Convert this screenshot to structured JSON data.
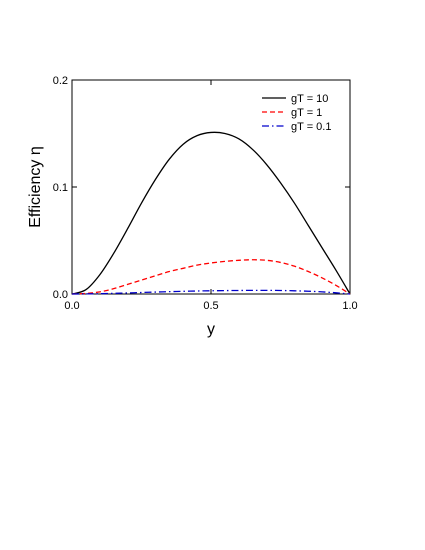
{
  "chart_data": {
    "type": "line",
    "title": "",
    "xlabel": "y",
    "ylabel": "Efficiency η",
    "xlim": [
      0.0,
      1.0
    ],
    "ylim": [
      0.0,
      0.2
    ],
    "x_ticks": [
      0.0,
      1.0
    ],
    "y_ticks": [
      0.0,
      0.1,
      0.2
    ],
    "x_tick_labels": [
      "0.0",
      "1.0"
    ],
    "y_tick_labels": [
      "0.0",
      "0.1",
      "0.2"
    ],
    "grid": false,
    "legend_position": "top-right",
    "x": [
      0.0,
      0.05,
      0.1,
      0.15,
      0.2,
      0.25,
      0.3,
      0.35,
      0.4,
      0.45,
      0.5,
      0.55,
      0.6,
      0.65,
      0.7,
      0.75,
      0.8,
      0.85,
      0.9,
      0.95,
      1.0
    ],
    "series": [
      {
        "name": "gT = 10",
        "color": "#000000",
        "dash": "solid",
        "values": [
          0.0,
          0.004,
          0.018,
          0.038,
          0.061,
          0.085,
          0.107,
          0.126,
          0.14,
          0.148,
          0.151,
          0.15,
          0.145,
          0.135,
          0.121,
          0.104,
          0.085,
          0.064,
          0.043,
          0.022,
          0.0
        ]
      },
      {
        "name": "gT = 1",
        "color": "#ff0000",
        "dash": "dashed",
        "values": [
          0.0,
          0.0005,
          0.002,
          0.005,
          0.009,
          0.013,
          0.017,
          0.021,
          0.024,
          0.027,
          0.029,
          0.0305,
          0.0315,
          0.032,
          0.0315,
          0.0295,
          0.026,
          0.021,
          0.015,
          0.008,
          0.0
        ]
      },
      {
        "name": "gT = 0.1",
        "color": "#0000cc",
        "dash": "dash-dot",
        "values": [
          0.0,
          0.0001,
          0.0003,
          0.0006,
          0.001,
          0.0014,
          0.0018,
          0.0022,
          0.0025,
          0.0028,
          0.003,
          0.0032,
          0.0033,
          0.0034,
          0.0034,
          0.0033,
          0.003,
          0.0026,
          0.002,
          0.0011,
          0.0
        ]
      }
    ]
  }
}
